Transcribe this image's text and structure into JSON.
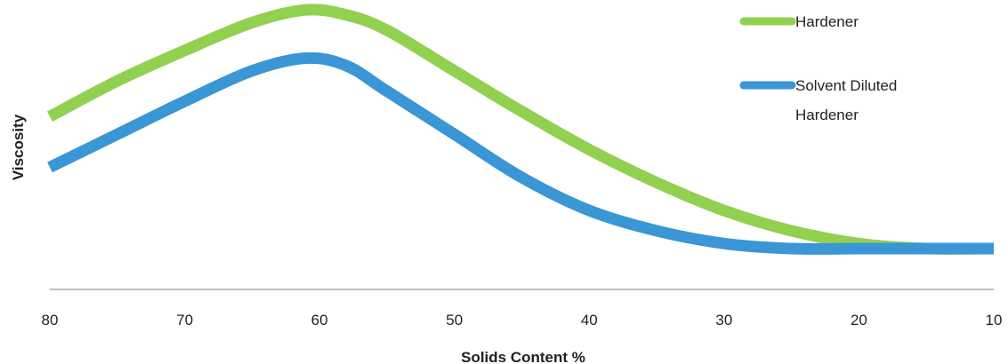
{
  "chart_data": {
    "type": "line",
    "title": "",
    "xlabel": "Solids Content %",
    "ylabel": "Viscosity",
    "x_ticks": [
      80,
      70,
      60,
      50,
      40,
      30,
      20,
      10
    ],
    "xlim": [
      80,
      10
    ],
    "x_reversed": true,
    "ylim": [
      0,
      100
    ],
    "y_ticks_shown": false,
    "grid": false,
    "legend_position": "top-right",
    "x": [
      80,
      75,
      70,
      65,
      61,
      58,
      55,
      50,
      45,
      40,
      35,
      30,
      25,
      20,
      15,
      10
    ],
    "series": [
      {
        "name": "Hardener",
        "color": "#92d050",
        "values": [
          59,
          73,
          85,
          96,
          101,
          99,
          93,
          77,
          61,
          46,
          33,
          22,
          14,
          9,
          7,
          7
        ]
      },
      {
        "name": "Solvent Diluted Hardener",
        "color": "#3a96d4",
        "values": [
          39,
          52,
          65,
          77,
          82,
          79,
          69,
          52,
          35,
          22,
          14,
          9,
          7,
          7,
          7,
          7
        ]
      }
    ],
    "legend": {
      "items": [
        {
          "label_lines": [
            "Hardener"
          ],
          "color": "#92d050"
        },
        {
          "label_lines": [
            "Solvent Diluted",
            "Hardener"
          ],
          "color": "#3a96d4"
        }
      ]
    }
  }
}
